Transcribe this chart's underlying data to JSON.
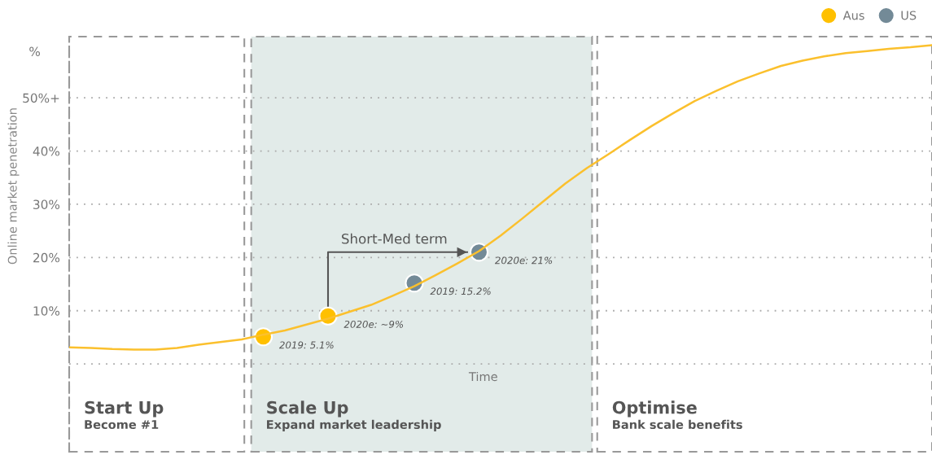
{
  "chart_data": {
    "type": "line",
    "ylabel": "Online market penetration",
    "xlabel": "Time",
    "categories": [
      null,
      null,
      null,
      null,
      null,
      null,
      null,
      null,
      null,
      null,
      null,
      null,
      null,
      null,
      null,
      null,
      null,
      null,
      null,
      null,
      null,
      null,
      null,
      null,
      null,
      null,
      null,
      null,
      null,
      null,
      null,
      null,
      null,
      null,
      null,
      null,
      null,
      null,
      null,
      null,
      null
    ],
    "ylim": [
      -16.5,
      61.5
    ],
    "yticks": [
      {
        "value": 0,
        "label": null
      },
      {
        "value": 10,
        "label": "10%"
      },
      {
        "value": 20,
        "label": "20%"
      },
      {
        "value": 30,
        "label": "30%"
      },
      {
        "value": 40,
        "label": "40%"
      },
      {
        "value": 50,
        "label": "50%+"
      }
    ],
    "tick_labels": "y",
    "grid": "y",
    "legend": "top right",
    "series": [
      {
        "color": "#fbc02d",
        "marker": "none",
        "values": [
          3.1,
          3.0,
          2.8,
          2.7,
          2.7,
          3.0,
          3.6,
          4.1,
          4.6,
          5.5,
          6.3,
          7.4,
          8.5,
          9.8,
          11.1,
          12.8,
          14.6,
          16.7,
          18.9,
          21.2,
          24.1,
          27.3,
          30.6,
          33.9,
          36.8,
          39.4,
          42.1,
          44.7,
          47.1,
          49.4,
          51.3,
          53.1,
          54.6,
          56.0,
          57.0,
          57.8,
          58.4,
          58.8,
          59.2,
          59.5,
          59.9
        ]
      },
      {
        "type": "scatter",
        "name": "Aus",
        "color": "#ffc000",
        "marker": "circle",
        "values": [
          null,
          null,
          null,
          null,
          null,
          null,
          null,
          null,
          null,
          5.1,
          null,
          null,
          9,
          null,
          null,
          null,
          null,
          null,
          null,
          null,
          null,
          null,
          null,
          null,
          null,
          null,
          null,
          null,
          null,
          null,
          null,
          null,
          null,
          null,
          null,
          null,
          null,
          null,
          null,
          null,
          null
        ],
        "value_labels": [
          null,
          null,
          null,
          null,
          null,
          null,
          null,
          null,
          null,
          "2019: 5.1%",
          null,
          null,
          "2020e: ~9%",
          null,
          null,
          null,
          null,
          null,
          null,
          null,
          null,
          null,
          null,
          null,
          null,
          null,
          null,
          null,
          null,
          null,
          null,
          null,
          null,
          null,
          null,
          null,
          null,
          null,
          null,
          null,
          null
        ]
      },
      {
        "type": "scatter",
        "name": "US",
        "color": "#738a97",
        "marker": "circle",
        "values": [
          null,
          null,
          null,
          null,
          null,
          null,
          null,
          null,
          null,
          null,
          null,
          null,
          null,
          null,
          null,
          null,
          15.2,
          null,
          null,
          21,
          null,
          null,
          null,
          null,
          null,
          null,
          null,
          null,
          null,
          null,
          null,
          null,
          null,
          null,
          null,
          null,
          null,
          null,
          null,
          null,
          null
        ],
        "value_labels": [
          null,
          null,
          null,
          null,
          null,
          null,
          null,
          null,
          null,
          null,
          null,
          null,
          null,
          null,
          null,
          null,
          "2019: 15.2%",
          null,
          null,
          "2020e: 21%",
          null,
          null,
          null,
          null,
          null,
          null,
          null,
          null,
          null,
          null,
          null,
          null,
          null,
          null,
          null,
          null,
          null,
          null,
          null,
          null,
          null
        ]
      }
    ],
    "annotations": [
      "%",
      "Short-Med term",
      "Start Up",
      "Become #1",
      "Scale Up",
      "Expand market leadership",
      "Optimise",
      "Bank scale benefits"
    ]
  }
}
